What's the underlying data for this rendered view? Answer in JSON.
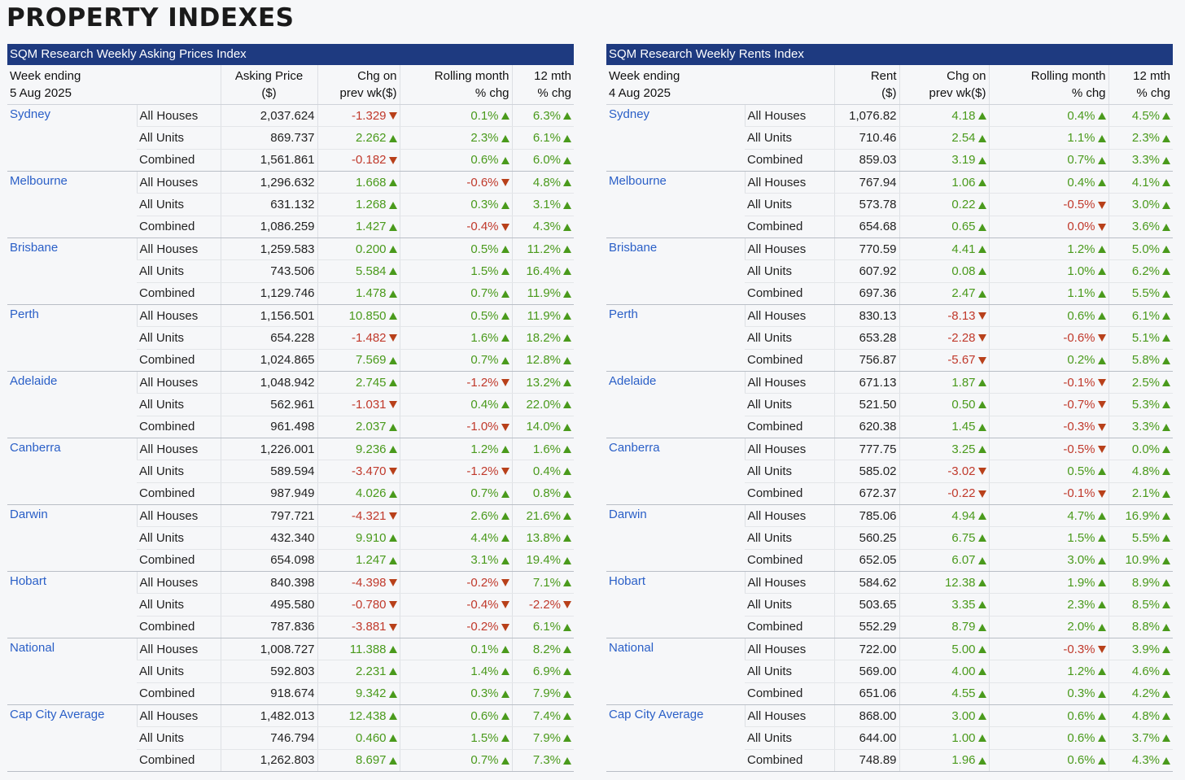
{
  "page_title": "PROPERTY INDEXES",
  "prices": {
    "title": "SQM Research Weekly Asking Prices Index",
    "headers": {
      "week_label": "Week ending",
      "week_date": "5 Aug 2025",
      "value_l1": "Asking Price",
      "value_l2": "($)",
      "chg_l1": "Chg on",
      "chg_l2": "prev wk($)",
      "roll_l1": "Rolling month",
      "roll_l2": "% chg",
      "yr_l1": "12 mth",
      "yr_l2": "% chg"
    },
    "groups": [
      {
        "city": "Sydney",
        "rows": [
          {
            "seg": "All Houses",
            "val": "2,037.624",
            "chg": "-1.329",
            "roll": "0.1%",
            "yr": "6.3%",
            "dc": "down",
            "dr": "up",
            "dy": "up"
          },
          {
            "seg": "All Units",
            "val": "869.737",
            "chg": "2.262",
            "roll": "2.3%",
            "yr": "6.1%",
            "dc": "up",
            "dr": "up",
            "dy": "up"
          },
          {
            "seg": "Combined",
            "val": "1,561.861",
            "chg": "-0.182",
            "roll": "0.6%",
            "yr": "6.0%",
            "dc": "down",
            "dr": "up",
            "dy": "up"
          }
        ]
      },
      {
        "city": "Melbourne",
        "rows": [
          {
            "seg": "All Houses",
            "val": "1,296.632",
            "chg": "1.668",
            "roll": "-0.6%",
            "yr": "4.8%",
            "dc": "up",
            "dr": "down",
            "dy": "up"
          },
          {
            "seg": "All Units",
            "val": "631.132",
            "chg": "1.268",
            "roll": "0.3%",
            "yr": "3.1%",
            "dc": "up",
            "dr": "up",
            "dy": "up"
          },
          {
            "seg": "Combined",
            "val": "1,086.259",
            "chg": "1.427",
            "roll": "-0.4%",
            "yr": "4.3%",
            "dc": "up",
            "dr": "down",
            "dy": "up"
          }
        ]
      },
      {
        "city": "Brisbane",
        "rows": [
          {
            "seg": "All Houses",
            "val": "1,259.583",
            "chg": "0.200",
            "roll": "0.5%",
            "yr": "11.2%",
            "dc": "up",
            "dr": "up",
            "dy": "up"
          },
          {
            "seg": "All Units",
            "val": "743.506",
            "chg": "5.584",
            "roll": "1.5%",
            "yr": "16.4%",
            "dc": "up",
            "dr": "up",
            "dy": "up"
          },
          {
            "seg": "Combined",
            "val": "1,129.746",
            "chg": "1.478",
            "roll": "0.7%",
            "yr": "11.9%",
            "dc": "up",
            "dr": "up",
            "dy": "up"
          }
        ]
      },
      {
        "city": "Perth",
        "rows": [
          {
            "seg": "All Houses",
            "val": "1,156.501",
            "chg": "10.850",
            "roll": "0.5%",
            "yr": "11.9%",
            "dc": "up",
            "dr": "up",
            "dy": "up"
          },
          {
            "seg": "All Units",
            "val": "654.228",
            "chg": "-1.482",
            "roll": "1.6%",
            "yr": "18.2%",
            "dc": "down",
            "dr": "up",
            "dy": "up"
          },
          {
            "seg": "Combined",
            "val": "1,024.865",
            "chg": "7.569",
            "roll": "0.7%",
            "yr": "12.8%",
            "dc": "up",
            "dr": "up",
            "dy": "up"
          }
        ]
      },
      {
        "city": "Adelaide",
        "rows": [
          {
            "seg": "All Houses",
            "val": "1,048.942",
            "chg": "2.745",
            "roll": "-1.2%",
            "yr": "13.2%",
            "dc": "up",
            "dr": "down",
            "dy": "up"
          },
          {
            "seg": "All Units",
            "val": "562.961",
            "chg": "-1.031",
            "roll": "0.4%",
            "yr": "22.0%",
            "dc": "down",
            "dr": "up",
            "dy": "up"
          },
          {
            "seg": "Combined",
            "val": "961.498",
            "chg": "2.037",
            "roll": "-1.0%",
            "yr": "14.0%",
            "dc": "up",
            "dr": "down",
            "dy": "up"
          }
        ]
      },
      {
        "city": "Canberra",
        "rows": [
          {
            "seg": "All Houses",
            "val": "1,226.001",
            "chg": "9.236",
            "roll": "1.2%",
            "yr": "1.6%",
            "dc": "up",
            "dr": "up",
            "dy": "up"
          },
          {
            "seg": "All Units",
            "val": "589.594",
            "chg": "-3.470",
            "roll": "-1.2%",
            "yr": "0.4%",
            "dc": "down",
            "dr": "down",
            "dy": "up"
          },
          {
            "seg": "Combined",
            "val": "987.949",
            "chg": "4.026",
            "roll": "0.7%",
            "yr": "0.8%",
            "dc": "up",
            "dr": "up",
            "dy": "up"
          }
        ]
      },
      {
        "city": "Darwin",
        "rows": [
          {
            "seg": "All Houses",
            "val": "797.721",
            "chg": "-4.321",
            "roll": "2.6%",
            "yr": "21.6%",
            "dc": "down",
            "dr": "up",
            "dy": "up"
          },
          {
            "seg": "All Units",
            "val": "432.340",
            "chg": "9.910",
            "roll": "4.4%",
            "yr": "13.8%",
            "dc": "up",
            "dr": "up",
            "dy": "up"
          },
          {
            "seg": "Combined",
            "val": "654.098",
            "chg": "1.247",
            "roll": "3.1%",
            "yr": "19.4%",
            "dc": "up",
            "dr": "up",
            "dy": "up"
          }
        ]
      },
      {
        "city": "Hobart",
        "rows": [
          {
            "seg": "All Houses",
            "val": "840.398",
            "chg": "-4.398",
            "roll": "-0.2%",
            "yr": "7.1%",
            "dc": "down",
            "dr": "down",
            "dy": "up"
          },
          {
            "seg": "All Units",
            "val": "495.580",
            "chg": "-0.780",
            "roll": "-0.4%",
            "yr": "-2.2%",
            "dc": "down",
            "dr": "down",
            "dy": "down"
          },
          {
            "seg": "Combined",
            "val": "787.836",
            "chg": "-3.881",
            "roll": "-0.2%",
            "yr": "6.1%",
            "dc": "down",
            "dr": "down",
            "dy": "up"
          }
        ]
      },
      {
        "city": "National",
        "rows": [
          {
            "seg": "All Houses",
            "val": "1,008.727",
            "chg": "11.388",
            "roll": "0.1%",
            "yr": "8.2%",
            "dc": "up",
            "dr": "up",
            "dy": "up"
          },
          {
            "seg": "All Units",
            "val": "592.803",
            "chg": "2.231",
            "roll": "1.4%",
            "yr": "6.9%",
            "dc": "up",
            "dr": "up",
            "dy": "up"
          },
          {
            "seg": "Combined",
            "val": "918.674",
            "chg": "9.342",
            "roll": "0.3%",
            "yr": "7.9%",
            "dc": "up",
            "dr": "up",
            "dy": "up"
          }
        ]
      },
      {
        "city": "Cap City Average",
        "rows": [
          {
            "seg": "All Houses",
            "val": "1,482.013",
            "chg": "12.438",
            "roll": "0.6%",
            "yr": "7.4%",
            "dc": "up",
            "dr": "up",
            "dy": "up"
          },
          {
            "seg": "All Units",
            "val": "746.794",
            "chg": "0.460",
            "roll": "1.5%",
            "yr": "7.9%",
            "dc": "up",
            "dr": "up",
            "dy": "up"
          },
          {
            "seg": "Combined",
            "val": "1,262.803",
            "chg": "8.697",
            "roll": "0.7%",
            "yr": "7.3%",
            "dc": "up",
            "dr": "up",
            "dy": "up"
          }
        ]
      }
    ]
  },
  "rents": {
    "title": "SQM Research Weekly Rents Index",
    "headers": {
      "week_label": "Week ending",
      "week_date": "4 Aug 2025",
      "value_l1": "Rent",
      "value_l2": "($)",
      "chg_l1": "Chg on",
      "chg_l2": "prev wk($)",
      "roll_l1": "Rolling month",
      "roll_l2": "% chg",
      "yr_l1": "12 mth",
      "yr_l2": "% chg"
    },
    "groups": [
      {
        "city": "Sydney",
        "rows": [
          {
            "seg": "All Houses",
            "val": "1,076.82",
            "chg": "4.18",
            "roll": "0.4%",
            "yr": "4.5%",
            "dc": "up",
            "dr": "up",
            "dy": "up"
          },
          {
            "seg": "All Units",
            "val": "710.46",
            "chg": "2.54",
            "roll": "1.1%",
            "yr": "2.3%",
            "dc": "up",
            "dr": "up",
            "dy": "up"
          },
          {
            "seg": "Combined",
            "val": "859.03",
            "chg": "3.19",
            "roll": "0.7%",
            "yr": "3.3%",
            "dc": "up",
            "dr": "up",
            "dy": "up"
          }
        ]
      },
      {
        "city": "Melbourne",
        "rows": [
          {
            "seg": "All Houses",
            "val": "767.94",
            "chg": "1.06",
            "roll": "0.4%",
            "yr": "4.1%",
            "dc": "up",
            "dr": "up",
            "dy": "up"
          },
          {
            "seg": "All Units",
            "val": "573.78",
            "chg": "0.22",
            "roll": "-0.5%",
            "yr": "3.0%",
            "dc": "up",
            "dr": "down",
            "dy": "up"
          },
          {
            "seg": "Combined",
            "val": "654.68",
            "chg": "0.65",
            "roll": "0.0%",
            "yr": "3.6%",
            "dc": "up",
            "dr": "down",
            "dy": "up"
          }
        ]
      },
      {
        "city": "Brisbane",
        "rows": [
          {
            "seg": "All Houses",
            "val": "770.59",
            "chg": "4.41",
            "roll": "1.2%",
            "yr": "5.0%",
            "dc": "up",
            "dr": "up",
            "dy": "up"
          },
          {
            "seg": "All Units",
            "val": "607.92",
            "chg": "0.08",
            "roll": "1.0%",
            "yr": "6.2%",
            "dc": "up",
            "dr": "up",
            "dy": "up"
          },
          {
            "seg": "Combined",
            "val": "697.36",
            "chg": "2.47",
            "roll": "1.1%",
            "yr": "5.5%",
            "dc": "up",
            "dr": "up",
            "dy": "up"
          }
        ]
      },
      {
        "city": "Perth",
        "rows": [
          {
            "seg": "All Houses",
            "val": "830.13",
            "chg": "-8.13",
            "roll": "0.6%",
            "yr": "6.1%",
            "dc": "down",
            "dr": "up",
            "dy": "up"
          },
          {
            "seg": "All Units",
            "val": "653.28",
            "chg": "-2.28",
            "roll": "-0.6%",
            "yr": "5.1%",
            "dc": "down",
            "dr": "down",
            "dy": "up"
          },
          {
            "seg": "Combined",
            "val": "756.87",
            "chg": "-5.67",
            "roll": "0.2%",
            "yr": "5.8%",
            "dc": "down",
            "dr": "up",
            "dy": "up"
          }
        ]
      },
      {
        "city": "Adelaide",
        "rows": [
          {
            "seg": "All Houses",
            "val": "671.13",
            "chg": "1.87",
            "roll": "-0.1%",
            "yr": "2.5%",
            "dc": "up",
            "dr": "down",
            "dy": "up"
          },
          {
            "seg": "All Units",
            "val": "521.50",
            "chg": "0.50",
            "roll": "-0.7%",
            "yr": "5.3%",
            "dc": "up",
            "dr": "down",
            "dy": "up"
          },
          {
            "seg": "Combined",
            "val": "620.38",
            "chg": "1.45",
            "roll": "-0.3%",
            "yr": "3.3%",
            "dc": "up",
            "dr": "down",
            "dy": "up"
          }
        ]
      },
      {
        "city": "Canberra",
        "rows": [
          {
            "seg": "All Houses",
            "val": "777.75",
            "chg": "3.25",
            "roll": "-0.5%",
            "yr": "0.0%",
            "dc": "up",
            "dr": "down",
            "dy": "up"
          },
          {
            "seg": "All Units",
            "val": "585.02",
            "chg": "-3.02",
            "roll": "0.5%",
            "yr": "4.8%",
            "dc": "down",
            "dr": "up",
            "dy": "up"
          },
          {
            "seg": "Combined",
            "val": "672.37",
            "chg": "-0.22",
            "roll": "-0.1%",
            "yr": "2.1%",
            "dc": "down",
            "dr": "down",
            "dy": "up"
          }
        ]
      },
      {
        "city": "Darwin",
        "rows": [
          {
            "seg": "All Houses",
            "val": "785.06",
            "chg": "4.94",
            "roll": "4.7%",
            "yr": "16.9%",
            "dc": "up",
            "dr": "up",
            "dy": "up"
          },
          {
            "seg": "All Units",
            "val": "560.25",
            "chg": "6.75",
            "roll": "1.5%",
            "yr": "5.5%",
            "dc": "up",
            "dr": "up",
            "dy": "up"
          },
          {
            "seg": "Combined",
            "val": "652.05",
            "chg": "6.07",
            "roll": "3.0%",
            "yr": "10.9%",
            "dc": "up",
            "dr": "up",
            "dy": "up"
          }
        ]
      },
      {
        "city": "Hobart",
        "rows": [
          {
            "seg": "All Houses",
            "val": "584.62",
            "chg": "12.38",
            "roll": "1.9%",
            "yr": "8.9%",
            "dc": "up",
            "dr": "up",
            "dy": "up"
          },
          {
            "seg": "All Units",
            "val": "503.65",
            "chg": "3.35",
            "roll": "2.3%",
            "yr": "8.5%",
            "dc": "up",
            "dr": "up",
            "dy": "up"
          },
          {
            "seg": "Combined",
            "val": "552.29",
            "chg": "8.79",
            "roll": "2.0%",
            "yr": "8.8%",
            "dc": "up",
            "dr": "up",
            "dy": "up"
          }
        ]
      },
      {
        "city": "National",
        "rows": [
          {
            "seg": "All Houses",
            "val": "722.00",
            "chg": "5.00",
            "roll": "-0.3%",
            "yr": "3.9%",
            "dc": "up",
            "dr": "down",
            "dy": "up"
          },
          {
            "seg": "All Units",
            "val": "569.00",
            "chg": "4.00",
            "roll": "1.2%",
            "yr": "4.6%",
            "dc": "up",
            "dr": "up",
            "dy": "up"
          },
          {
            "seg": "Combined",
            "val": "651.06",
            "chg": "4.55",
            "roll": "0.3%",
            "yr": "4.2%",
            "dc": "up",
            "dr": "up",
            "dy": "up"
          }
        ]
      },
      {
        "city": "Cap City Average",
        "rows": [
          {
            "seg": "All Houses",
            "val": "868.00",
            "chg": "3.00",
            "roll": "0.6%",
            "yr": "4.8%",
            "dc": "up",
            "dr": "up",
            "dy": "up"
          },
          {
            "seg": "All Units",
            "val": "644.00",
            "chg": "1.00",
            "roll": "0.6%",
            "yr": "3.7%",
            "dc": "up",
            "dr": "up",
            "dy": "up"
          },
          {
            "seg": "Combined",
            "val": "748.89",
            "chg": "1.96",
            "roll": "0.6%",
            "yr": "4.3%",
            "dc": "up",
            "dr": "up",
            "dy": "up"
          }
        ]
      }
    ]
  }
}
